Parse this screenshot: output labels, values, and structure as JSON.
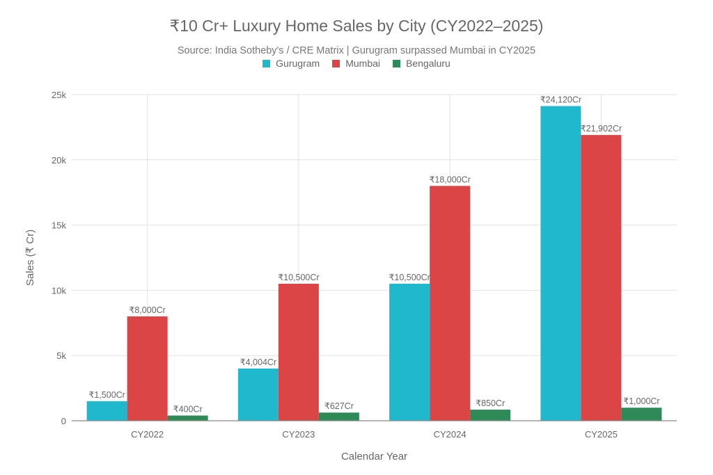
{
  "chart_data": {
    "type": "bar",
    "title": "₹10 Cr+ Luxury Home Sales by City (CY2022–2025)",
    "subtitle": "Source: India Sotheby's / CRE Matrix | Gurugram surpassed Mumbai in CY2025",
    "xlabel": "Calendar Year",
    "ylabel": "Sales (₹ Cr)",
    "ylim": [
      0,
      25000
    ],
    "yticks": [
      0,
      5000,
      10000,
      15000,
      20000,
      25000
    ],
    "ytick_labels": [
      "0",
      "5k",
      "10k",
      "15k",
      "20k",
      "25k"
    ],
    "grid": true,
    "legend_position": "top-center",
    "categories": [
      "CY2022",
      "CY2023",
      "CY2024",
      "CY2025"
    ],
    "series": [
      {
        "name": "Gurugram",
        "color": "#1fb8cd",
        "values": [
          1500,
          4004,
          10500,
          24120
        ],
        "labels": [
          "₹1,500Cr",
          "₹4,004Cr",
          "₹10,500Cr",
          "₹24,120Cr"
        ]
      },
      {
        "name": "Mumbai",
        "color": "#db4545",
        "values": [
          8000,
          10500,
          18000,
          21902
        ],
        "labels": [
          "₹8,000Cr",
          "₹10,500Cr",
          "₹18,000Cr",
          "₹21,902Cr"
        ]
      },
      {
        "name": "Bengaluru",
        "color": "#2e8b57",
        "values": [
          400,
          627,
          850,
          1000
        ],
        "labels": [
          "₹400Cr",
          "₹627Cr",
          "₹850Cr",
          "₹1,000Cr"
        ]
      }
    ]
  }
}
